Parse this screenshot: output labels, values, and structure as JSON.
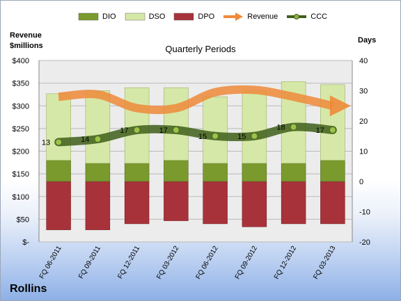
{
  "legend": [
    {
      "name": "DIO",
      "color": "#7a9a2e",
      "kind": "bar"
    },
    {
      "name": "DSO",
      "color": "#d6e8a8",
      "kind": "bar"
    },
    {
      "name": "DPO",
      "color": "#a8323a",
      "kind": "bar"
    },
    {
      "name": "Revenue",
      "color": "#ee8a3a",
      "kind": "arrow"
    },
    {
      "name": "CCC",
      "color": "#3f5f1a",
      "kind": "line"
    }
  ],
  "chart_data": {
    "type": "bar",
    "title": "Quarterly Periods",
    "left_axis_title": "Revenue\n$millions",
    "right_axis_title": "Days",
    "left_ticks": [
      "$400",
      "$350",
      "$300",
      "$250",
      "$200",
      "$150",
      "$100",
      "$50",
      "$-"
    ],
    "right_ticks": [
      "40",
      "30",
      "20",
      "10",
      "0",
      "-10",
      "-20"
    ],
    "left_range": [
      0,
      400
    ],
    "right_range": [
      -20,
      40
    ],
    "categories": [
      "FQ 06-2011",
      "FQ 09-2011",
      "FQ 12-2011",
      "FQ 03-2012",
      "FQ 06-2012",
      "FQ 09-2012",
      "FQ 12-2012",
      "FQ 03-2013"
    ],
    "series": [
      {
        "name": "DPO",
        "axis": "days",
        "values": [
          -16,
          -16,
          -14,
          -13,
          -14,
          -15,
          -14,
          -14
        ]
      },
      {
        "name": "DIO",
        "axis": "days",
        "values": [
          7,
          6,
          6,
          7,
          6,
          6,
          6,
          7
        ]
      },
      {
        "name": "DSO",
        "axis": "days",
        "values": [
          22,
          24,
          25,
          24,
          22,
          24,
          27,
          25
        ]
      },
      {
        "name": "Revenue",
        "axis": "revenue",
        "values": [
          320,
          325,
          295,
          295,
          330,
          335,
          320,
          300
        ]
      },
      {
        "name": "CCC",
        "axis": "days",
        "values": [
          13,
          14,
          17,
          17,
          15,
          15,
          18,
          17
        ]
      }
    ],
    "ccc_labels": [
      "13",
      "14",
      "17",
      "17",
      "15",
      "15",
      "18",
      "17"
    ],
    "grid": true,
    "legend_position": "top"
  },
  "company": "Rollins"
}
